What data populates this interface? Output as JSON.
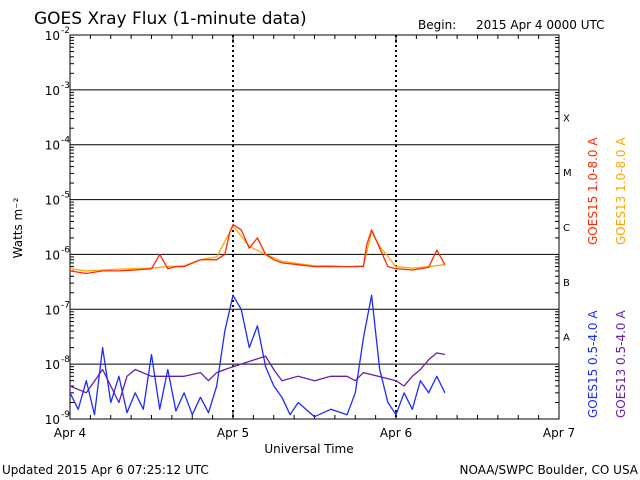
{
  "header": {
    "title": "GOES Xray Flux (1-minute data)",
    "begin_label": "Begin:",
    "begin_value": "2015 Apr 4 0000 UTC"
  },
  "footer": {
    "updated": "Updated 2015 Apr  6 07:25:12 UTC",
    "credit": "NOAA/SWPC Boulder, CO USA"
  },
  "colors": {
    "goes15_long": "#ff2a00",
    "goes13_long": "#ffa500",
    "goes15_short": "#1e2bff",
    "goes13_short": "#6a1fa8",
    "grid": "#000000"
  },
  "chart_data": {
    "type": "line",
    "title": "GOES Xray Flux (1-minute data)",
    "xlabel": "Universal Time",
    "ylabel": "Watts m⁻²",
    "x_ticks": [
      "Apr 4",
      "Apr 5",
      "Apr 6",
      "Apr 7"
    ],
    "xlim_days": [
      0,
      3
    ],
    "ylim": [
      1e-09,
      0.01
    ],
    "yscale": "log",
    "y_ticks": [
      {
        "value": 0.01,
        "label": "10",
        "exp": "-2"
      },
      {
        "value": 0.001,
        "label": "10",
        "exp": "-3"
      },
      {
        "value": 0.0001,
        "label": "10",
        "exp": "-4"
      },
      {
        "value": 1e-05,
        "label": "10",
        "exp": "-5"
      },
      {
        "value": 1e-06,
        "label": "10",
        "exp": "-6"
      },
      {
        "value": 1e-07,
        "label": "10",
        "exp": "-7"
      },
      {
        "value": 1e-08,
        "label": "10",
        "exp": "-8"
      },
      {
        "value": 1e-09,
        "label": "10",
        "exp": "-9"
      }
    ],
    "flare_classes": [
      {
        "label": "X",
        "value": 0.0001
      },
      {
        "label": "M",
        "value": 1e-05
      },
      {
        "label": "C",
        "value": 1e-06
      },
      {
        "label": "B",
        "value": 1e-07
      },
      {
        "label": "A",
        "value": 1e-08
      }
    ],
    "grid": true,
    "legend_placement": "right",
    "series": [
      {
        "name": "GOES15 1.0-8.0 A",
        "color": "#ff2a00",
        "x": [
          0.0,
          0.1,
          0.2,
          0.3,
          0.4,
          0.5,
          0.55,
          0.6,
          0.65,
          0.7,
          0.8,
          0.9,
          0.95,
          0.98,
          1.0,
          1.05,
          1.1,
          1.15,
          1.2,
          1.25,
          1.3,
          1.4,
          1.5,
          1.6,
          1.7,
          1.8,
          1.82,
          1.85,
          1.9,
          1.95,
          2.0,
          2.1,
          2.2,
          2.25,
          2.3
        ],
        "values": [
          5e-07,
          4.5e-07,
          5e-07,
          5e-07,
          5.2e-07,
          5.5e-07,
          1e-06,
          5.5e-07,
          6e-07,
          6e-07,
          8e-07,
          8e-07,
          1e-06,
          2.5e-06,
          3.5e-06,
          2.8e-06,
          1.3e-06,
          2e-06,
          1e-06,
          8e-07,
          7e-07,
          6.5e-07,
          6e-07,
          6e-07,
          6e-07,
          6e-07,
          1.5e-06,
          2.8e-06,
          1.3e-06,
          6e-07,
          5.5e-07,
          5.2e-07,
          5.8e-07,
          1.2e-06,
          6.5e-07
        ]
      },
      {
        "name": "GOES13 1.0-8.0 A",
        "color": "#ffa500",
        "x": [
          0.0,
          0.1,
          0.2,
          0.3,
          0.4,
          0.5,
          0.6,
          0.7,
          0.8,
          0.9,
          1.0,
          1.1,
          1.2,
          1.3,
          1.4,
          1.5,
          1.6,
          1.7,
          1.8,
          1.85,
          1.9,
          2.0,
          2.1,
          2.2,
          2.3
        ],
        "values": [
          5.5e-07,
          5e-07,
          5.2e-07,
          5.4e-07,
          5.5e-07,
          5.6e-07,
          6e-07,
          6.2e-07,
          8e-07,
          9e-07,
          3.3e-06,
          1.4e-06,
          1e-06,
          7.5e-07,
          6.8e-07,
          6.2e-07,
          6.2e-07,
          6e-07,
          6.2e-07,
          2.6e-06,
          1.4e-06,
          6e-07,
          5.6e-07,
          6e-07,
          6.5e-07
        ]
      },
      {
        "name": "GOES15 0.5-4.0 A",
        "color": "#1e2bff",
        "x": [
          0.0,
          0.05,
          0.1,
          0.15,
          0.2,
          0.25,
          0.3,
          0.35,
          0.4,
          0.45,
          0.5,
          0.55,
          0.6,
          0.65,
          0.7,
          0.75,
          0.8,
          0.85,
          0.9,
          0.95,
          1.0,
          1.05,
          1.1,
          1.15,
          1.2,
          1.25,
          1.3,
          1.35,
          1.4,
          1.5,
          1.6,
          1.7,
          1.75,
          1.8,
          1.85,
          1.9,
          1.95,
          2.0,
          2.05,
          2.1,
          2.15,
          2.2,
          2.25,
          2.3
        ],
        "values": [
          3e-09,
          1.5e-09,
          5e-09,
          1.2e-09,
          2e-08,
          2e-09,
          6e-09,
          1.3e-09,
          3e-09,
          1.5e-09,
          1.5e-08,
          1.5e-09,
          8e-09,
          1.4e-09,
          3e-09,
          1.2e-09,
          2.5e-09,
          1.3e-09,
          4e-09,
          4e-08,
          1.8e-07,
          1e-07,
          2e-08,
          5e-08,
          9e-09,
          4e-09,
          2.5e-09,
          1.2e-09,
          2e-09,
          1.1e-09,
          1.5e-09,
          1.2e-09,
          3e-09,
          3e-08,
          1.8e-07,
          8e-09,
          2e-09,
          1.2e-09,
          3e-09,
          1.5e-09,
          5e-09,
          3e-09,
          6e-09,
          3e-09
        ]
      },
      {
        "name": "GOES13 0.5-4.0 A",
        "color": "#6a1fa8",
        "x": [
          0.0,
          0.1,
          0.2,
          0.3,
          0.35,
          0.4,
          0.5,
          0.6,
          0.7,
          0.8,
          0.85,
          0.9,
          0.95,
          1.2,
          1.25,
          1.3,
          1.4,
          1.5,
          1.6,
          1.7,
          1.75,
          1.8,
          2.0,
          2.05,
          2.1,
          2.15,
          2.2,
          2.25,
          2.3
        ],
        "values": [
          4e-09,
          3e-09,
          8e-09,
          2e-09,
          6e-09,
          8e-09,
          6e-09,
          6e-09,
          6e-09,
          7e-09,
          5e-09,
          7e-09,
          8e-09,
          1.4e-08,
          8e-09,
          5e-09,
          6e-09,
          5e-09,
          6e-09,
          6e-09,
          5e-09,
          7e-09,
          5e-09,
          4e-09,
          6e-09,
          8e-09,
          1.2e-08,
          1.6e-08,
          1.5e-08
        ]
      }
    ]
  }
}
